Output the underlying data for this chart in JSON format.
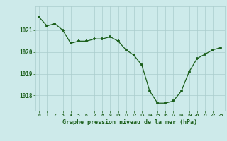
{
  "x": [
    0,
    1,
    2,
    3,
    4,
    5,
    6,
    7,
    8,
    9,
    10,
    11,
    12,
    13,
    14,
    15,
    16,
    17,
    18,
    19,
    20,
    21,
    22,
    23
  ],
  "y": [
    1021.6,
    1021.2,
    1021.3,
    1021.0,
    1020.4,
    1020.5,
    1020.5,
    1020.6,
    1020.6,
    1020.7,
    1020.5,
    1020.1,
    1019.85,
    1019.4,
    1018.2,
    1017.65,
    1017.65,
    1017.75,
    1018.2,
    1019.1,
    1019.7,
    1019.9,
    1020.1,
    1020.2
  ],
  "xlabel": "Graphe pression niveau de la mer (hPa)",
  "bg_color": "#cdeaea",
  "grid_color": "#aacccc",
  "line_color": "#1a5e1a",
  "marker_color": "#1a5e1a",
  "tick_label_color": "#1a5e1a",
  "xlabel_color": "#1a5e1a",
  "ylim": [
    1017.3,
    1022.1
  ],
  "yticks": [
    1018,
    1019,
    1020,
    1021
  ],
  "xlim": [
    -0.5,
    23.5
  ],
  "xticks": [
    0,
    1,
    2,
    3,
    4,
    5,
    6,
    7,
    8,
    9,
    10,
    11,
    12,
    13,
    14,
    15,
    16,
    17,
    18,
    19,
    20,
    21,
    22,
    23
  ]
}
